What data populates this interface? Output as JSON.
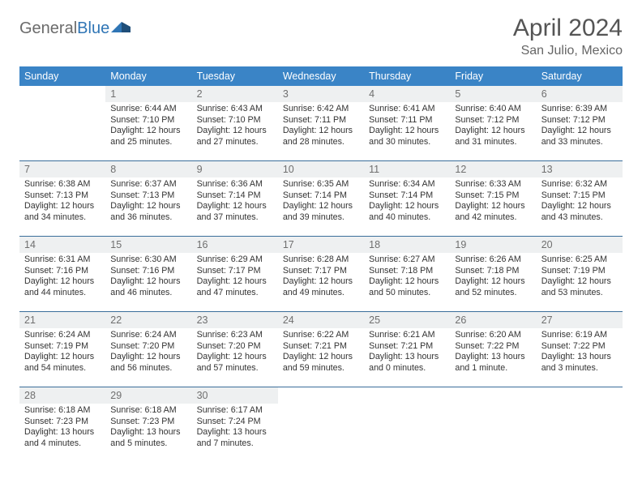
{
  "brand": {
    "part1": "General",
    "part2": "Blue"
  },
  "title": "April 2024",
  "location": "San Julio, Mexico",
  "colors": {
    "header_bg": "#3a84c6",
    "header_fg": "#ffffff",
    "daynum_bg": "#eef0f1",
    "daynum_fg": "#6f6f6f",
    "rule": "#3a6e9a",
    "brand_gray": "#6b6b6b",
    "brand_blue": "#2f75b5"
  },
  "weekdays": [
    "Sunday",
    "Monday",
    "Tuesday",
    "Wednesday",
    "Thursday",
    "Friday",
    "Saturday"
  ],
  "weeks": [
    [
      {
        "day": "",
        "sunrise": "",
        "sunset": "",
        "daylight": ""
      },
      {
        "day": "1",
        "sunrise": "Sunrise: 6:44 AM",
        "sunset": "Sunset: 7:10 PM",
        "daylight": "Daylight: 12 hours and 25 minutes."
      },
      {
        "day": "2",
        "sunrise": "Sunrise: 6:43 AM",
        "sunset": "Sunset: 7:10 PM",
        "daylight": "Daylight: 12 hours and 27 minutes."
      },
      {
        "day": "3",
        "sunrise": "Sunrise: 6:42 AM",
        "sunset": "Sunset: 7:11 PM",
        "daylight": "Daylight: 12 hours and 28 minutes."
      },
      {
        "day": "4",
        "sunrise": "Sunrise: 6:41 AM",
        "sunset": "Sunset: 7:11 PM",
        "daylight": "Daylight: 12 hours and 30 minutes."
      },
      {
        "day": "5",
        "sunrise": "Sunrise: 6:40 AM",
        "sunset": "Sunset: 7:12 PM",
        "daylight": "Daylight: 12 hours and 31 minutes."
      },
      {
        "day": "6",
        "sunrise": "Sunrise: 6:39 AM",
        "sunset": "Sunset: 7:12 PM",
        "daylight": "Daylight: 12 hours and 33 minutes."
      }
    ],
    [
      {
        "day": "7",
        "sunrise": "Sunrise: 6:38 AM",
        "sunset": "Sunset: 7:13 PM",
        "daylight": "Daylight: 12 hours and 34 minutes."
      },
      {
        "day": "8",
        "sunrise": "Sunrise: 6:37 AM",
        "sunset": "Sunset: 7:13 PM",
        "daylight": "Daylight: 12 hours and 36 minutes."
      },
      {
        "day": "9",
        "sunrise": "Sunrise: 6:36 AM",
        "sunset": "Sunset: 7:14 PM",
        "daylight": "Daylight: 12 hours and 37 minutes."
      },
      {
        "day": "10",
        "sunrise": "Sunrise: 6:35 AM",
        "sunset": "Sunset: 7:14 PM",
        "daylight": "Daylight: 12 hours and 39 minutes."
      },
      {
        "day": "11",
        "sunrise": "Sunrise: 6:34 AM",
        "sunset": "Sunset: 7:14 PM",
        "daylight": "Daylight: 12 hours and 40 minutes."
      },
      {
        "day": "12",
        "sunrise": "Sunrise: 6:33 AM",
        "sunset": "Sunset: 7:15 PM",
        "daylight": "Daylight: 12 hours and 42 minutes."
      },
      {
        "day": "13",
        "sunrise": "Sunrise: 6:32 AM",
        "sunset": "Sunset: 7:15 PM",
        "daylight": "Daylight: 12 hours and 43 minutes."
      }
    ],
    [
      {
        "day": "14",
        "sunrise": "Sunrise: 6:31 AM",
        "sunset": "Sunset: 7:16 PM",
        "daylight": "Daylight: 12 hours and 44 minutes."
      },
      {
        "day": "15",
        "sunrise": "Sunrise: 6:30 AM",
        "sunset": "Sunset: 7:16 PM",
        "daylight": "Daylight: 12 hours and 46 minutes."
      },
      {
        "day": "16",
        "sunrise": "Sunrise: 6:29 AM",
        "sunset": "Sunset: 7:17 PM",
        "daylight": "Daylight: 12 hours and 47 minutes."
      },
      {
        "day": "17",
        "sunrise": "Sunrise: 6:28 AM",
        "sunset": "Sunset: 7:17 PM",
        "daylight": "Daylight: 12 hours and 49 minutes."
      },
      {
        "day": "18",
        "sunrise": "Sunrise: 6:27 AM",
        "sunset": "Sunset: 7:18 PM",
        "daylight": "Daylight: 12 hours and 50 minutes."
      },
      {
        "day": "19",
        "sunrise": "Sunrise: 6:26 AM",
        "sunset": "Sunset: 7:18 PM",
        "daylight": "Daylight: 12 hours and 52 minutes."
      },
      {
        "day": "20",
        "sunrise": "Sunrise: 6:25 AM",
        "sunset": "Sunset: 7:19 PM",
        "daylight": "Daylight: 12 hours and 53 minutes."
      }
    ],
    [
      {
        "day": "21",
        "sunrise": "Sunrise: 6:24 AM",
        "sunset": "Sunset: 7:19 PM",
        "daylight": "Daylight: 12 hours and 54 minutes."
      },
      {
        "day": "22",
        "sunrise": "Sunrise: 6:24 AM",
        "sunset": "Sunset: 7:20 PM",
        "daylight": "Daylight: 12 hours and 56 minutes."
      },
      {
        "day": "23",
        "sunrise": "Sunrise: 6:23 AM",
        "sunset": "Sunset: 7:20 PM",
        "daylight": "Daylight: 12 hours and 57 minutes."
      },
      {
        "day": "24",
        "sunrise": "Sunrise: 6:22 AM",
        "sunset": "Sunset: 7:21 PM",
        "daylight": "Daylight: 12 hours and 59 minutes."
      },
      {
        "day": "25",
        "sunrise": "Sunrise: 6:21 AM",
        "sunset": "Sunset: 7:21 PM",
        "daylight": "Daylight: 13 hours and 0 minutes."
      },
      {
        "day": "26",
        "sunrise": "Sunrise: 6:20 AM",
        "sunset": "Sunset: 7:22 PM",
        "daylight": "Daylight: 13 hours and 1 minute."
      },
      {
        "day": "27",
        "sunrise": "Sunrise: 6:19 AM",
        "sunset": "Sunset: 7:22 PM",
        "daylight": "Daylight: 13 hours and 3 minutes."
      }
    ],
    [
      {
        "day": "28",
        "sunrise": "Sunrise: 6:18 AM",
        "sunset": "Sunset: 7:23 PM",
        "daylight": "Daylight: 13 hours and 4 minutes."
      },
      {
        "day": "29",
        "sunrise": "Sunrise: 6:18 AM",
        "sunset": "Sunset: 7:23 PM",
        "daylight": "Daylight: 13 hours and 5 minutes."
      },
      {
        "day": "30",
        "sunrise": "Sunrise: 6:17 AM",
        "sunset": "Sunset: 7:24 PM",
        "daylight": "Daylight: 13 hours and 7 minutes."
      },
      {
        "day": "",
        "sunrise": "",
        "sunset": "",
        "daylight": ""
      },
      {
        "day": "",
        "sunrise": "",
        "sunset": "",
        "daylight": ""
      },
      {
        "day": "",
        "sunrise": "",
        "sunset": "",
        "daylight": ""
      },
      {
        "day": "",
        "sunrise": "",
        "sunset": "",
        "daylight": ""
      }
    ]
  ]
}
